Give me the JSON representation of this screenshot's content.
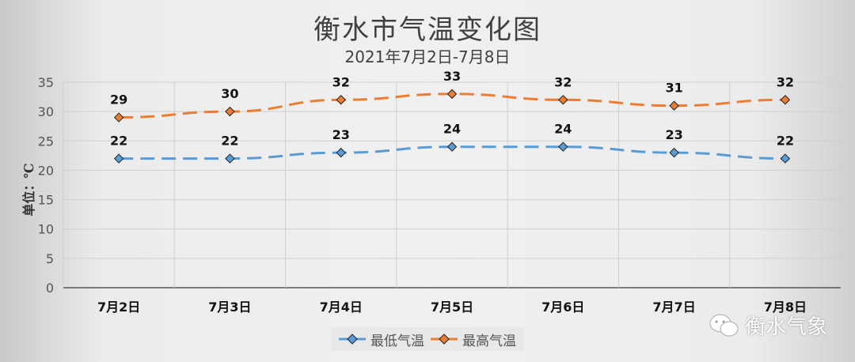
{
  "chart_data": {
    "type": "line",
    "title": "衡水市气温变化图",
    "subtitle": "2021年7月2日-7月8日",
    "ylabel": "单位：℃",
    "xlabel": "",
    "categories": [
      "7月2日",
      "7月3日",
      "7月4日",
      "7月5日",
      "7月6日",
      "7月7日",
      "7月8日"
    ],
    "ylim": [
      0,
      35
    ],
    "yticks": [
      0,
      5,
      10,
      15,
      20,
      25,
      30,
      35
    ],
    "grid": true,
    "legend_position": "bottom",
    "series": [
      {
        "name": "最低气温",
        "values": [
          22,
          22,
          23,
          24,
          24,
          23,
          22
        ],
        "color": "#5b9bd5",
        "style": "dashed",
        "marker": "diamond"
      },
      {
        "name": "最高气温",
        "values": [
          29,
          30,
          32,
          33,
          32,
          31,
          32
        ],
        "color": "#ed7d31",
        "style": "dashed",
        "marker": "diamond"
      }
    ]
  },
  "watermark": {
    "text": "衡水气象",
    "icon": "wechat-icon"
  }
}
